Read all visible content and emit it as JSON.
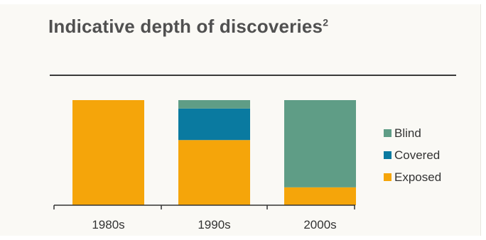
{
  "chart_data": {
    "type": "bar",
    "stacked": true,
    "title": "Indicative depth of discoveries",
    "title_superscript": "2",
    "categories": [
      "1980s",
      "1990s",
      "2000s"
    ],
    "series": [
      {
        "name": "Exposed",
        "color": "#f5a50a",
        "values": [
          100,
          62,
          17
        ]
      },
      {
        "name": "Covered",
        "color": "#0a7aa0",
        "values": [
          0,
          30,
          0
        ]
      },
      {
        "name": "Blind",
        "color": "#5f9d86",
        "values": [
          0,
          8,
          83
        ]
      }
    ],
    "legend_order": [
      "Blind",
      "Covered",
      "Exposed"
    ],
    "legend_position": "right",
    "ylim": [
      0,
      100
    ],
    "grid": false,
    "xlabel": "",
    "ylabel": ""
  },
  "colors": {
    "title": "#505050",
    "axis": "#333333",
    "background": "#faf9f5"
  }
}
